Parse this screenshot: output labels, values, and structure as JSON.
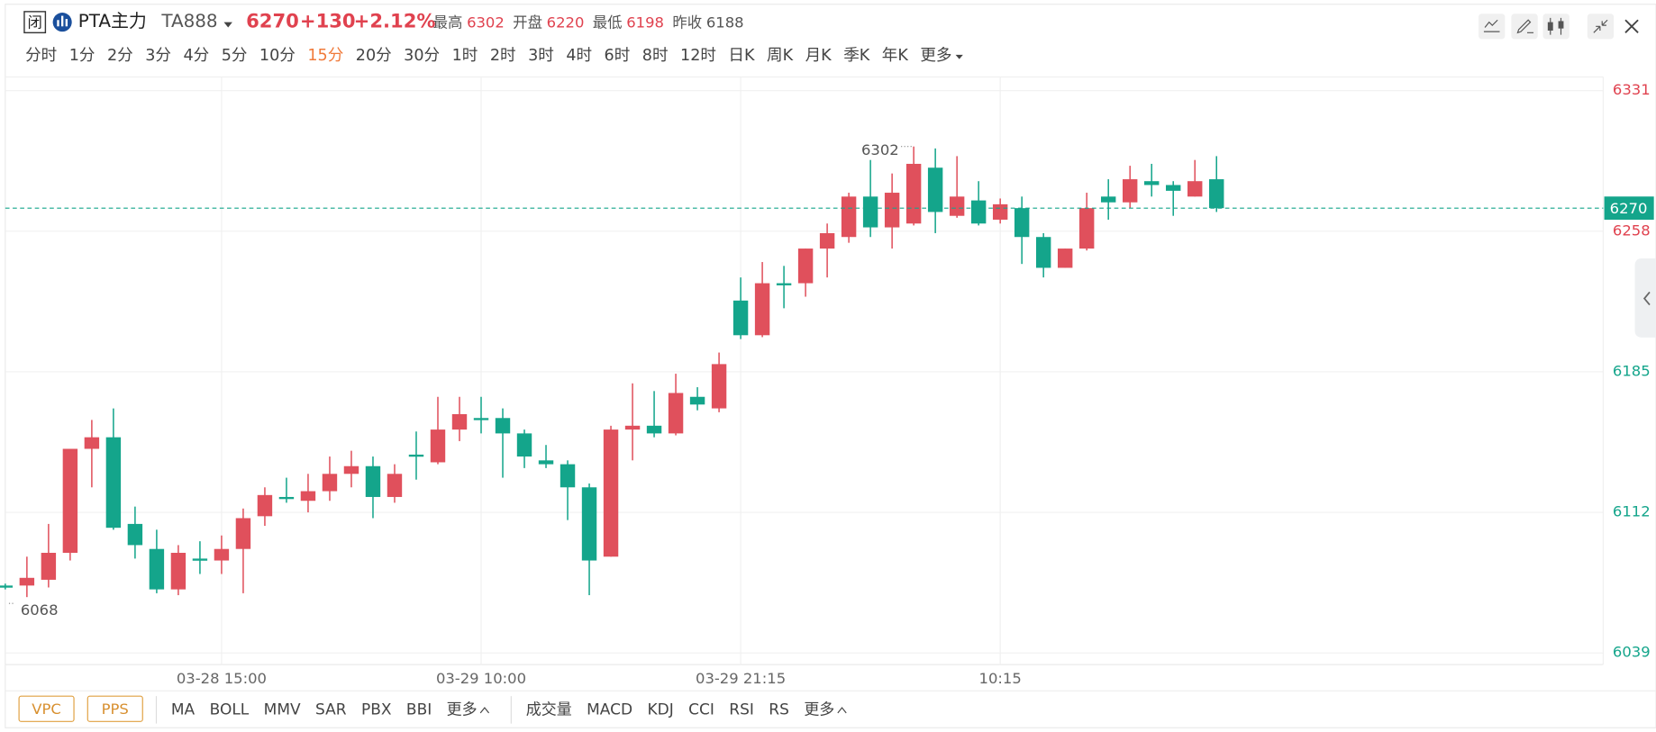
{
  "header": {
    "status": "闭",
    "symbol": "PTA主力",
    "code": "TA888",
    "price": 6270,
    "change": "+130",
    "change_pct": "+2.12%",
    "stats": [
      {
        "label": "最高",
        "value": 6302
      },
      {
        "label": "开盘",
        "value": 6220
      },
      {
        "label": "最低",
        "value": 6198
      },
      {
        "label": "昨收",
        "value": 6188
      }
    ],
    "periods": [
      {
        "label": "分时"
      },
      {
        "label": "1分"
      },
      {
        "label": "2分"
      },
      {
        "label": "3分"
      },
      {
        "label": "4分"
      },
      {
        "label": "5分"
      },
      {
        "label": "10分"
      },
      {
        "label": "15分",
        "active": true
      },
      {
        "label": "20分"
      },
      {
        "label": "30分"
      },
      {
        "label": "1时"
      },
      {
        "label": "2时"
      },
      {
        "label": "3时"
      },
      {
        "label": "4时"
      },
      {
        "label": "6时"
      },
      {
        "label": "8时"
      },
      {
        "label": "12时"
      },
      {
        "label": "日K"
      },
      {
        "label": "周K"
      },
      {
        "label": "月K"
      },
      {
        "label": "季K"
      },
      {
        "label": "年K"
      },
      {
        "label": "更多"
      }
    ]
  },
  "indicators": {
    "overlays": [
      "VPC",
      "PPS"
    ],
    "main": [
      "MA",
      "BOLL",
      "MMV",
      "SAR",
      "PBX",
      "BBI",
      "更多"
    ],
    "sub": [
      "成交量",
      "MACD",
      "KDJ",
      "CCI",
      "RSI",
      "RS",
      "更多"
    ]
  },
  "chart_data": {
    "type": "candlestick",
    "categories": [
      null,
      null,
      null,
      null,
      null,
      null,
      null,
      null,
      null,
      null,
      "03-28 15:00",
      null,
      null,
      null,
      null,
      null,
      null,
      null,
      null,
      null,
      null,
      null,
      "03-29 10:00",
      null,
      null,
      null,
      null,
      null,
      null,
      null,
      null,
      null,
      null,
      null,
      "03-29 21:15",
      null,
      null,
      null,
      null,
      null,
      null,
      null,
      null,
      null,
      null,
      null,
      "10:15",
      null,
      null,
      null,
      null,
      null,
      null,
      null,
      null,
      null,
      null
    ],
    "open": [
      6074,
      6074,
      6077,
      6091,
      6145,
      6151,
      6106,
      6093,
      6072,
      6088,
      6087,
      6093,
      6110,
      6120,
      6118,
      6123,
      6132,
      6136,
      6120,
      6142,
      6138,
      6155,
      6161,
      6161,
      6153,
      6139,
      6137,
      6125,
      6089,
      6155,
      6157,
      6153,
      6172,
      6166,
      6222,
      6204,
      6231,
      6231,
      6249,
      6255,
      6276,
      6260,
      6262,
      6291,
      6266,
      6274,
      6264,
      6270,
      6255,
      6239,
      6249,
      6276,
      6273,
      6284,
      6282,
      6276,
      6285
    ],
    "close": [
      6073,
      6078,
      6091,
      6145,
      6151,
      6104,
      6095,
      6072,
      6091,
      6087,
      6093,
      6109,
      6121,
      6119,
      6123,
      6132,
      6136,
      6120,
      6132,
      6141,
      6155,
      6163,
      6160,
      6153,
      6141,
      6137,
      6125,
      6087,
      6155,
      6157,
      6153,
      6174,
      6168,
      6189,
      6204,
      6231,
      6230,
      6249,
      6257,
      6276,
      6260,
      6278,
      6293,
      6268,
      6276,
      6262,
      6272,
      6255,
      6239,
      6249,
      6270,
      6273,
      6285,
      6282,
      6279,
      6284,
      6270
    ],
    "high": [
      6075,
      6089,
      6106,
      6145,
      6160,
      6166,
      6115,
      6103,
      6095,
      6097,
      6100,
      6114,
      6125,
      6130,
      6132,
      6141,
      6144,
      6141,
      6137,
      6154,
      6172,
      6172,
      6172,
      6166,
      6155,
      6147,
      6139,
      6127,
      6157,
      6179,
      6175,
      6184,
      6177,
      6195,
      6234,
      6242,
      6240,
      6249,
      6262,
      6278,
      6295,
      6288,
      6302,
      6301,
      6297,
      6284,
      6275,
      6276,
      6257,
      6249,
      6278,
      6285,
      6292,
      6293,
      6284,
      6295,
      6297
    ],
    "low": [
      6072,
      6068,
      6073,
      6087,
      6125,
      6103,
      6088,
      6070,
      6069,
      6080,
      6080,
      6070,
      6105,
      6117,
      6112,
      6118,
      6125,
      6109,
      6117,
      6129,
      6137,
      6149,
      6153,
      6130,
      6135,
      6135,
      6108,
      6069,
      6089,
      6139,
      6151,
      6152,
      6165,
      6164,
      6202,
      6203,
      6218,
      6224,
      6234,
      6252,
      6255,
      6249,
      6261,
      6257,
      6265,
      6261,
      6262,
      6241,
      6234,
      6239,
      6248,
      6264,
      6270,
      6276,
      6266,
      6276,
      6268
    ],
    "up_color": "#e0505c",
    "down_color": "#14a58b",
    "ylim": [
      6033,
      6337
    ],
    "yticks": [
      6331,
      6258,
      6185,
      6112,
      6039
    ],
    "last_price": 6270,
    "high_label": 6302,
    "low_label": 6068,
    "grid": true
  }
}
